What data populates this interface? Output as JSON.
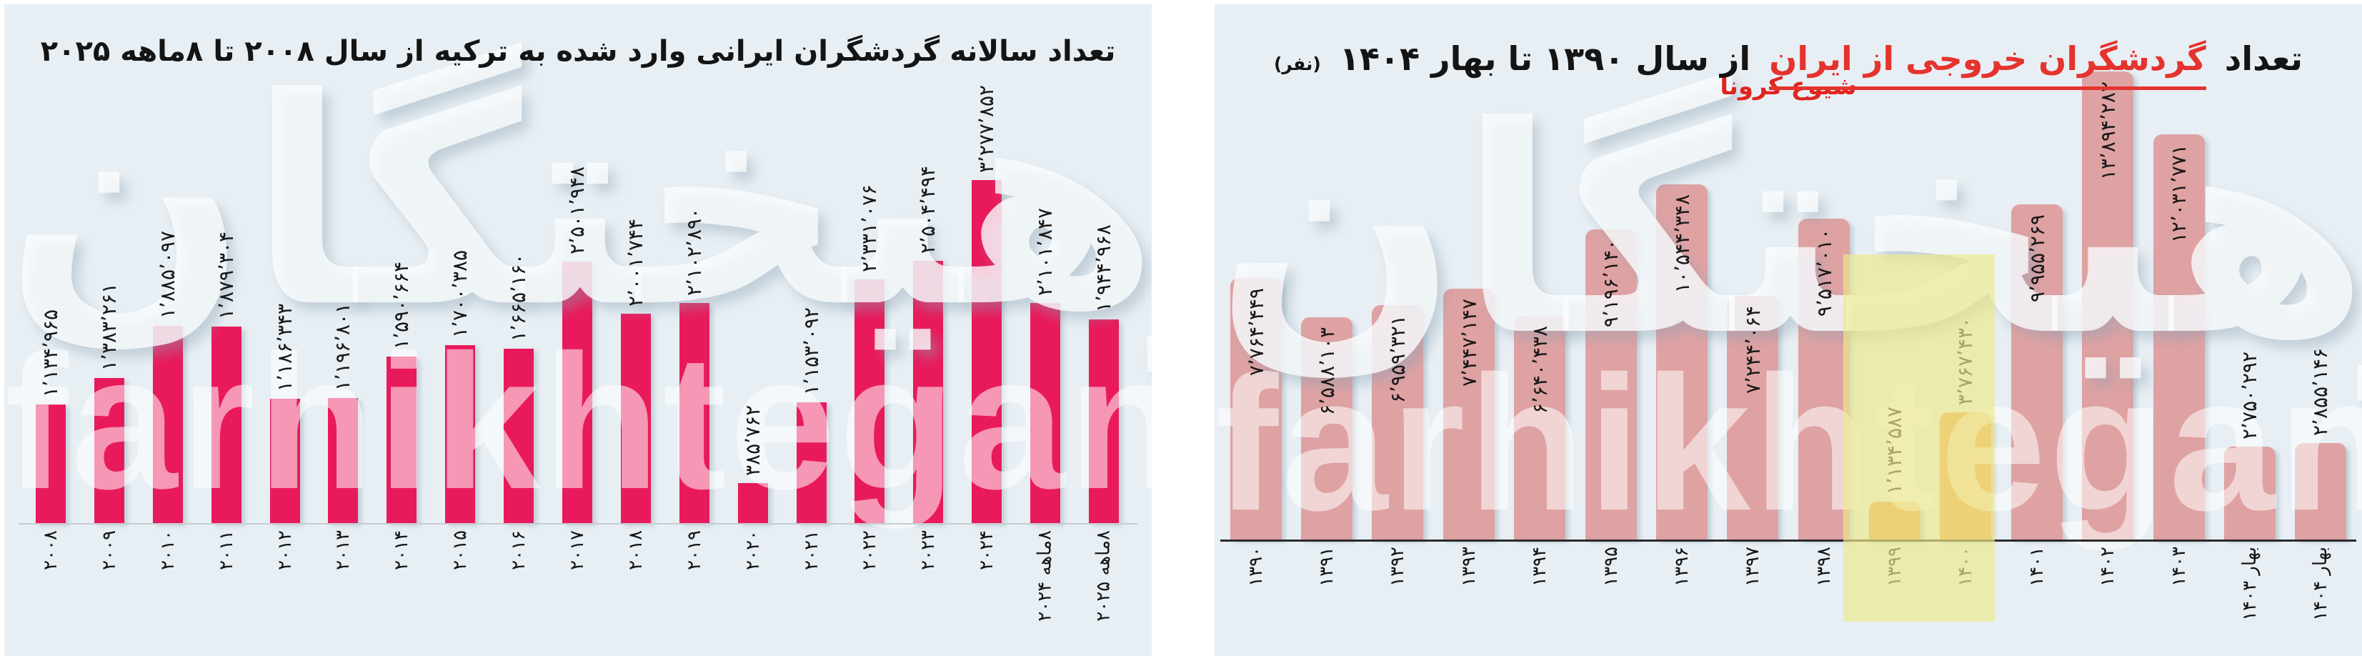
{
  "page": {
    "background": "#ffffff",
    "panel_background": "#e8eff4"
  },
  "watermark": {
    "persian": "فرهیختگان",
    "latin": "farhikhtegan"
  },
  "left_chart": {
    "title": "تعداد سالانه گردشگران ایرانی وارد شده به ترکیه از سال ۲۰۰۸ تا ۸ماهه ۲۰۲۵",
    "bar_color": "#e91a5b",
    "axis_color": "#c6ccd2",
    "label_color": "#181818"
  },
  "right_chart": {
    "title_parts": {
      "prefix": "تعداد",
      "highlight": "گردشگران خروجی از ایران",
      "suffix": "از سال ۱۳۹۰ تا بهار ۱۴۰۴",
      "unit": "(نفر)"
    },
    "title_highlight_color": "#e5332e",
    "bar_color": "#dfa2a3",
    "axis_color": "#2b2b2b",
    "covid": {
      "label": "شیوع کرونا",
      "applies_to": [
        "۱۳۹۹",
        "۱۴۰۰"
      ],
      "zone_color": "#ece98c",
      "bar_color": "#f2a04c",
      "label_color": "#e0241f"
    }
  },
  "chart_data": [
    {
      "type": "bar",
      "title": "تعداد سالانه گردشگران ایرانی وارد شده به ترکیه از سال ۲۰۰۸ تا ۸ماهه ۲۰۲۵",
      "categories": [
        "۲۰۰۸",
        "۲۰۰۹",
        "۲۰۱۰",
        "۲۰۱۱",
        "۲۰۱۲",
        "۲۰۱۳",
        "۲۰۱۴",
        "۲۰۱۵",
        "۲۰۱۶",
        "۲۰۱۷",
        "۲۰۱۸",
        "۲۰۱۹",
        "۲۰۲۰",
        "۲۰۲۱",
        "۲۰۲۲",
        "۲۰۲۳",
        "۲۰۲۴",
        "۸ماهه ۲۰۲۴",
        "۸ماهه ۲۰۲۵"
      ],
      "values": [
        1134965,
        1383261,
        1885097,
        1879304,
        1186343,
        1196801,
        1590664,
        1700385,
        1665160,
        2501948,
        2001744,
        2102890,
        385762,
        1153092,
        2331076,
        2504494,
        3277852,
        2101847,
        1944968
      ],
      "value_labels_fa": [
        "۱٬۱۳۴٬۹۶۵",
        "۱٬۳۸۳٬۲۶۱",
        "۱٬۸۸۵٬۰۹۷",
        "۱٬۸۷۹٬۳۰۴",
        "۱٬۱۸۶٬۳۴۳",
        "۱٬۱۹۶٬۸۰۱",
        "۱٬۵۹۰٬۶۶۴",
        "۱٬۷۰۰٬۳۸۵",
        "۱٬۶۶۵٬۱۶۰",
        "۲٬۵۰۱٬۹۴۸",
        "۲٬۰۰۱٬۷۴۴",
        "۲٬۱۰۲٬۸۹۰",
        "۳۸۵٬۷۶۲",
        "۱٬۱۵۳٬۰۹۲",
        "۲٬۳۳۱٬۰۷۶",
        "۲٬۵۰۴٬۴۹۴",
        "۳٬۲۷۷٬۸۵۲",
        "۲٬۱۰۱٬۸۴۷",
        "۱٬۹۴۴٬۹۶۸"
      ],
      "xlabel": "",
      "ylabel": "",
      "ylim": [
        0,
        3500000
      ],
      "grid": false,
      "legend": "none",
      "value_label_position": "above-bar-rotated",
      "tick_label_rotation_deg": -90
    },
    {
      "type": "bar",
      "title": "تعداد گردشگران خروجی از ایران از سال ۱۳۹۰ تا بهار ۱۴۰۴ (نفر)",
      "categories": [
        "۱۳۹۰",
        "۱۳۹۱",
        "۱۳۹۲",
        "۱۳۹۳",
        "۱۳۹۴",
        "۱۳۹۵",
        "۱۳۹۶",
        "۱۳۹۷",
        "۱۳۹۸",
        "۱۳۹۹",
        "۱۴۰۰",
        "۱۴۰۱",
        "۱۴۰۲",
        "۱۴۰۳",
        "بهار ۱۴۰۳",
        "بهار ۱۴۰۴"
      ],
      "values": [
        7764449,
        6588103,
        6959321,
        7447147,
        6640438,
        9196140,
        10544348,
        7244064,
        9517010,
        1134587,
        3767430,
        9955269,
        13894282,
        12031771,
        2750292,
        2855146
      ],
      "value_labels_fa": [
        "۷٬۷۶۴٬۴۴۹",
        "۶٬۵۸۸٬۱۰۳",
        "۶٬۹۵۹٬۳۲۱",
        "۷٬۴۴۷٬۱۴۷",
        "۶٬۶۴۰٬۴۳۸",
        "۹٬۱۹۶٬۱۴۰",
        "۱۰٬۵۴۴٬۳۴۸",
        "۷٬۲۴۴٬۰۶۴",
        "۹٬۵۱۷٬۰۱۰",
        "۱٬۱۳۴٬۵۸۷",
        "۳٬۷۶۷٬۴۳۰",
        "۹٬۹۵۵٬۲۶۹",
        "۱۳٬۸۹۴٬۲۸۲",
        "۱۲٬۰۳۱٬۷۷۱",
        "۲٬۷۵۰٬۲۹۲",
        "۲٬۸۵۵٬۱۴۶"
      ],
      "xlabel": "",
      "ylabel": "نفر",
      "ylim": [
        0,
        14500000
      ],
      "grid": false,
      "legend": "none",
      "annotation": {
        "text": "شیوع کرونا",
        "covers_categories": [
          "۱۳۹۹",
          "۱۴۰۰"
        ]
      },
      "covid_indices": [
        9,
        10
      ],
      "value_label_position": "inside-bar-top-rotated-or-above-for-short-bars",
      "tick_label_rotation_deg": -90
    }
  ]
}
